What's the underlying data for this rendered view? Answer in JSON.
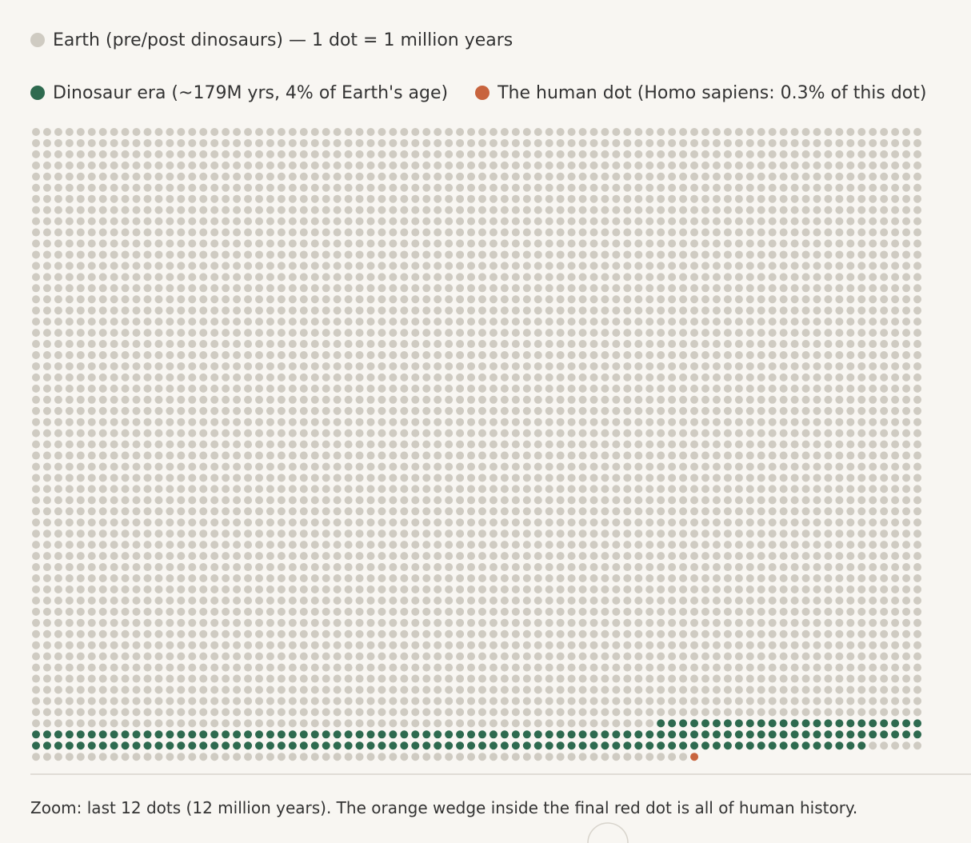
{
  "chart_data": {
    "type": "waffle",
    "columns": 80,
    "series": [
      {
        "name": "Earth (pre/post dinosaurs) — 1 dot = 1 million years",
        "color": "#cfcbc2"
      },
      {
        "name": "Dinosaur era (~179M yrs, 4% of Earth's age)",
        "color": "#2e6a4f"
      },
      {
        "name": "The human dot (Homo sapiens: 0.3% of this dot)",
        "color": "#c8643e"
      }
    ],
    "sequence": [
      {
        "series": 0,
        "dots": 4296
      },
      {
        "series": 1,
        "dots": 179
      },
      {
        "series": 0,
        "dots": 64
      },
      {
        "series": 2,
        "dots": 1
      }
    ],
    "caption": "Zoom: last 12 dots (12 million years). The orange wedge inside the final red dot is all of human history."
  }
}
